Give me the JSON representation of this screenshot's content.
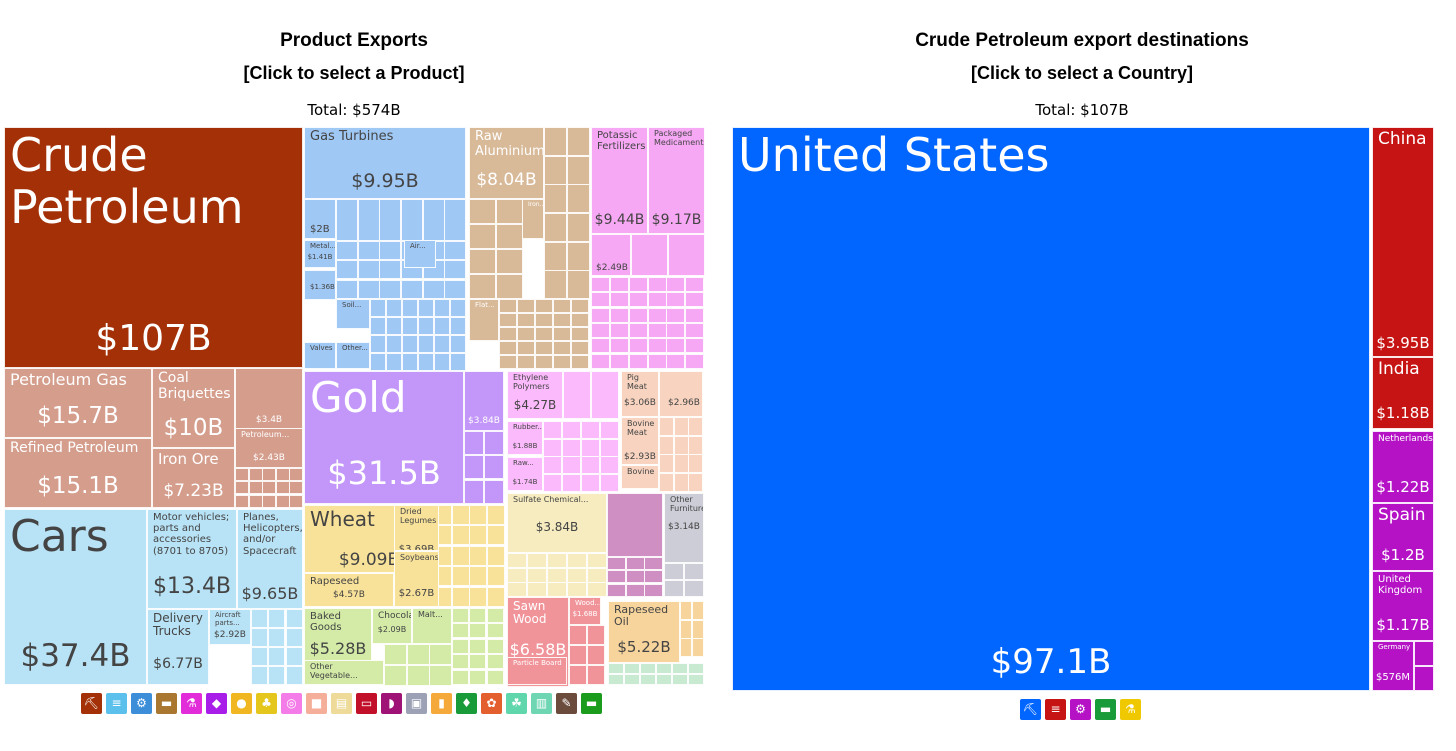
{
  "left": {
    "title": "Product Exports",
    "subtitle": "[Click to select a Product]",
    "total": "Total: $574B"
  },
  "right": {
    "title": "Crude Petroleum export destinations",
    "subtitle": "[Click to select a Country]",
    "total": "Total: $107B"
  },
  "chart_data": [
    {
      "type": "treemap",
      "title": "Product Exports",
      "total": "$574B",
      "items": [
        {
          "name": "Crude Petroleum",
          "value_label": "$107B",
          "value_b": 107,
          "color": "#a33007"
        },
        {
          "name": "Petroleum Gas",
          "value_label": "$15.7B",
          "value_b": 15.7,
          "color": "#d49d8c"
        },
        {
          "name": "Refined Petroleum",
          "value_label": "$15.1B",
          "value_b": 15.1,
          "color": "#d49d8c"
        },
        {
          "name": "Coal Briquettes",
          "value_label": "$10B",
          "value_b": 10,
          "color": "#d49d8c"
        },
        {
          "name": "Iron Ore",
          "value_label": "$7.23B",
          "value_b": 7.23,
          "color": "#d49d8c"
        },
        {
          "name": "",
          "value_label": "$3.4B",
          "value_b": 3.4,
          "color": "#d49d8c"
        },
        {
          "name": "Petroleum...",
          "value_label": "$2.43B",
          "value_b": 2.43,
          "color": "#d49d8c"
        },
        {
          "name": "Cars",
          "value_label": "$37.4B",
          "value_b": 37.4,
          "color": "#b8e2f5"
        },
        {
          "name": "Motor vehicles; parts and accessories (8701 to 8705)",
          "value_label": "$13.4B",
          "value_b": 13.4,
          "color": "#b8e2f5"
        },
        {
          "name": "Planes, Helicopters, and/or Spacecraft",
          "value_label": "$9.65B",
          "value_b": 9.65,
          "color": "#b8e2f5"
        },
        {
          "name": "Delivery Trucks",
          "value_label": "$6.77B",
          "value_b": 6.77,
          "color": "#b8e2f5"
        },
        {
          "name": "Aircraft parts...",
          "value_label": "$2.92B",
          "value_b": 2.92,
          "color": "#b8e2f5"
        },
        {
          "name": "Gas Turbines",
          "value_label": "$9.95B",
          "value_b": 9.95,
          "color": "#a0c8f5"
        },
        {
          "name": "",
          "value_label": "$2B",
          "value_b": 2,
          "color": "#a0c8f5"
        },
        {
          "name": "Metal...",
          "value_label": "$1.41B",
          "value_b": 1.41,
          "color": "#a0c8f5"
        },
        {
          "name": "Air...",
          "value_label": "",
          "value_b": null,
          "color": "#a0c8f5"
        },
        {
          "name": "",
          "value_label": "$1.36B",
          "value_b": 1.36,
          "color": "#a0c8f5"
        },
        {
          "name": "Soil...",
          "value_label": "",
          "value_b": null,
          "color": "#a0c8f5"
        },
        {
          "name": "Valves",
          "value_label": "",
          "value_b": null,
          "color": "#a0c8f5"
        },
        {
          "name": "Other...",
          "value_label": "",
          "value_b": null,
          "color": "#a0c8f5"
        },
        {
          "name": "Raw Aluminium",
          "value_label": "$8.04B",
          "value_b": 8.04,
          "color": "#d8b998"
        },
        {
          "name": "Iron...",
          "value_label": "",
          "value_b": null,
          "color": "#d8b998"
        },
        {
          "name": "Flat...",
          "value_label": "",
          "value_b": null,
          "color": "#d8b998"
        },
        {
          "name": "Potassic Fertilizers",
          "value_label": "$9.44B",
          "value_b": 9.44,
          "color": "#f7a8f5"
        },
        {
          "name": "Packaged Medicaments",
          "value_label": "$9.17B",
          "value_b": 9.17,
          "color": "#f7a8f5"
        },
        {
          "name": "",
          "value_label": "$2.49B",
          "value_b": 2.49,
          "color": "#f7a8f5"
        },
        {
          "name": "Gold",
          "value_label": "$31.5B",
          "value_b": 31.5,
          "color": "#c396fa"
        },
        {
          "name": "",
          "value_label": "$3.84B",
          "value_b": 3.84,
          "color": "#c396fa"
        },
        {
          "name": "Ethylene Polymers",
          "value_label": "$4.27B",
          "value_b": 4.27,
          "color": "#fbbafb"
        },
        {
          "name": "Rubber...",
          "value_label": "$1.88B",
          "value_b": 1.88,
          "color": "#fbbafb"
        },
        {
          "name": "Raw...",
          "value_label": "$1.74B",
          "value_b": 1.74,
          "color": "#fbbafb"
        },
        {
          "name": "Pig Meat",
          "value_label": "$3.06B",
          "value_b": 3.06,
          "color": "#f8d4c0"
        },
        {
          "name": "",
          "value_label": "$2.96B",
          "value_b": 2.96,
          "color": "#f8d4c0"
        },
        {
          "name": "Bovine Meat",
          "value_label": "$2.93B",
          "value_b": 2.93,
          "color": "#f8d4c0"
        },
        {
          "name": "Bovine",
          "value_label": "",
          "value_b": null,
          "color": "#f8d4c0"
        },
        {
          "name": "Wheat",
          "value_label": "$9.09B",
          "value_b": 9.09,
          "color": "#f8e29a"
        },
        {
          "name": "Dried Legumes",
          "value_label": "$3.69B",
          "value_b": 3.69,
          "color": "#f8e29a"
        },
        {
          "name": "Soybeans",
          "value_label": "$2.67B",
          "value_b": 2.67,
          "color": "#f8e29a"
        },
        {
          "name": "Rapeseed",
          "value_label": "$4.57B",
          "value_b": 4.57,
          "color": "#f8e29a"
        },
        {
          "name": "Sulfate Chemical...",
          "value_label": "$3.84B",
          "value_b": 3.84,
          "color": "#f6ecc0"
        },
        {
          "name": "",
          "value_label": "",
          "value_b": null,
          "color": "#d08fc2"
        },
        {
          "name": "Other Furniture",
          "value_label": "$3.14B",
          "value_b": 3.14,
          "color": "#cccdd6"
        },
        {
          "name": "Baked Goods",
          "value_label": "$5.28B",
          "value_b": 5.28,
          "color": "#d3eba7"
        },
        {
          "name": "Chocolate",
          "value_label": "$2.09B",
          "value_b": 2.09,
          "color": "#d3eba7"
        },
        {
          "name": "Malt...",
          "value_label": "",
          "value_b": null,
          "color": "#d3eba7"
        },
        {
          "name": "Other Vegetable...",
          "value_label": "",
          "value_b": null,
          "color": "#d3eba7"
        },
        {
          "name": "Sawn Wood",
          "value_label": "$6.58B",
          "value_b": 6.58,
          "color": "#f0949a"
        },
        {
          "name": "Wood...",
          "value_label": "$1.68B",
          "value_b": 1.68,
          "color": "#f0949a"
        },
        {
          "name": "Particle Board",
          "value_label": "",
          "value_b": null,
          "color": "#f0949a"
        },
        {
          "name": "Rapeseed Oil",
          "value_label": "$5.22B",
          "value_b": 5.22,
          "color": "#f7d49c"
        }
      ]
    },
    {
      "type": "treemap",
      "title": "Crude Petroleum export destinations",
      "total": "$107B",
      "items": [
        {
          "name": "United States",
          "value_label": "$97.1B",
          "value_b": 97.1,
          "color": "#0066ff"
        },
        {
          "name": "China",
          "value_label": "$3.95B",
          "value_b": 3.95,
          "color": "#c61313"
        },
        {
          "name": "India",
          "value_label": "$1.18B",
          "value_b": 1.18,
          "color": "#c61313"
        },
        {
          "name": "Netherlands",
          "value_label": "$1.22B",
          "value_b": 1.22,
          "color": "#b512c6"
        },
        {
          "name": "Spain",
          "value_label": "$1.2B",
          "value_b": 1.2,
          "color": "#b512c6"
        },
        {
          "name": "United Kingdom",
          "value_label": "$1.17B",
          "value_b": 1.17,
          "color": "#b512c6"
        },
        {
          "name": "Germany",
          "value_label": "$576M",
          "value_b": 0.576,
          "color": "#b512c6"
        }
      ]
    }
  ],
  "legend_left": [
    {
      "icon": "mineral-products-icon",
      "color": "#a33007"
    },
    {
      "icon": "transportation-icon",
      "color": "#5bc0eb"
    },
    {
      "icon": "machines-icon",
      "color": "#3d8ed9"
    },
    {
      "icon": "metals-icon",
      "color": "#a9772f"
    },
    {
      "icon": "chemical-products-icon",
      "color": "#e32cd9"
    },
    {
      "icon": "precious-metals-icon",
      "color": "#a81ee8"
    },
    {
      "icon": "animal-products-icon",
      "color": "#f0b722"
    },
    {
      "icon": "vegetable-products-icon",
      "color": "#e5c61c"
    },
    {
      "icon": "plastics-rubbers-icon",
      "color": "#f47ce8"
    },
    {
      "icon": "animal-hides-icon",
      "color": "#f5ae9a"
    },
    {
      "icon": "paper-goods-icon",
      "color": "#eedb99"
    },
    {
      "icon": "instruments-icon",
      "color": "#c3102a"
    },
    {
      "icon": "instruments-gauge-icon",
      "color": "#9e1375"
    },
    {
      "icon": "miscellaneous-icon",
      "color": "#9ca1b5"
    },
    {
      "icon": "foodstuffs-icon",
      "color": "#f5a93b"
    },
    {
      "icon": "textiles-icon",
      "color": "#1a9b3a"
    },
    {
      "icon": "wood-products-icon",
      "color": "#e35f2e"
    },
    {
      "icon": "animal-vegetable-bi-products-icon",
      "color": "#5fd6ab"
    },
    {
      "icon": "footwear-headwear-icon",
      "color": "#6fd6b3"
    },
    {
      "icon": "arts-antiques-icon",
      "color": "#6b4b3b"
    },
    {
      "icon": "weapons-icon",
      "color": "#1c9c1c"
    }
  ],
  "legend_right": [
    {
      "icon": "north-america-icon",
      "color": "#0066ff"
    },
    {
      "icon": "asia-icon",
      "color": "#c61313"
    },
    {
      "icon": "europe-icon",
      "color": "#b512c6"
    },
    {
      "icon": "south-america-icon",
      "color": "#1a9b3a"
    },
    {
      "icon": "africa-icon",
      "color": "#f0c800"
    }
  ]
}
